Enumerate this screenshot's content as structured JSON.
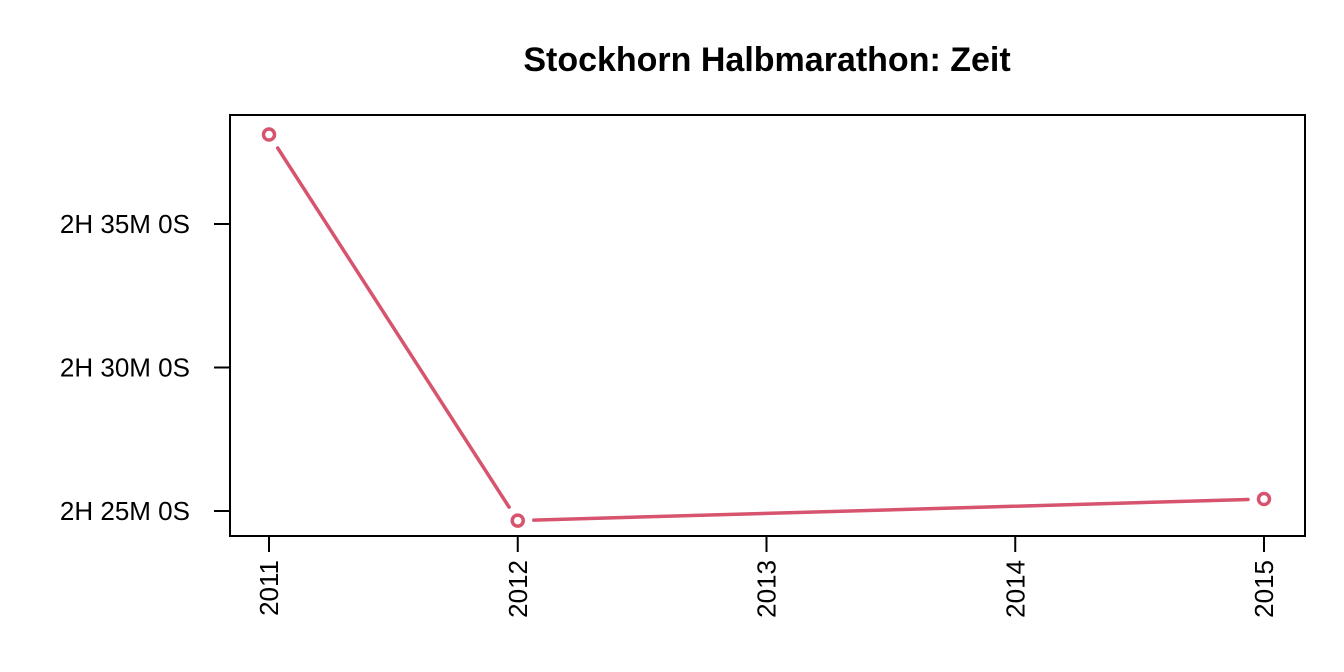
{
  "chart_data": {
    "type": "line",
    "title": "Stockhorn Halbmarathon: Zeit",
    "xlabel": "",
    "ylabel": "",
    "x_ticks": [
      "2011",
      "2012",
      "2013",
      "2014",
      "2015"
    ],
    "x_range": [
      2011,
      2015
    ],
    "y_unit": "seconds",
    "y_ticks": [
      {
        "value": 8700,
        "label": "2H 25M 0S"
      },
      {
        "value": 9000,
        "label": "2H 30M 0S"
      },
      {
        "value": 9300,
        "label": "2H 35M 0S"
      }
    ],
    "ylim": [
      8680,
      9380
    ],
    "grid": false,
    "legend": "none",
    "series": [
      {
        "color": "#d6546e",
        "points": [
          {
            "x": 2011,
            "y": 9487
          },
          {
            "x": 2012,
            "y": 8680
          },
          {
            "x": 2015,
            "y": 8725
          }
        ]
      }
    ]
  }
}
